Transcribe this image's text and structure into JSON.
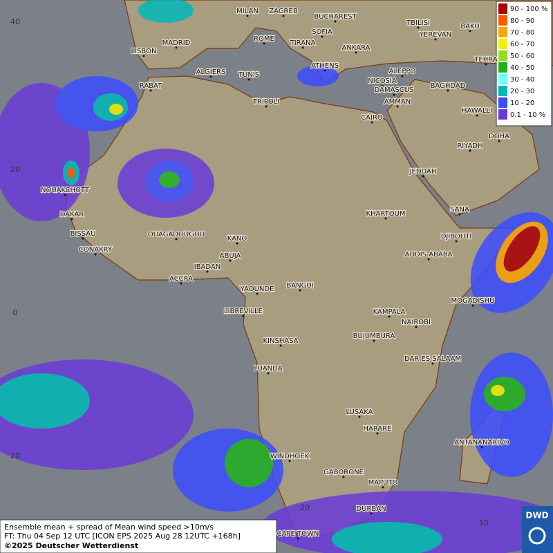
{
  "map": {
    "legend": [
      {
        "label": "90 - 100 %",
        "color": "#b00000"
      },
      {
        "label": "80 - 90",
        "color": "#ff5a00"
      },
      {
        "label": "70 - 80",
        "color": "#ffa500"
      },
      {
        "label": "60 - 70",
        "color": "#f0f000"
      },
      {
        "label": "50 - 60",
        "color": "#90e020"
      },
      {
        "label": "40 - 50",
        "color": "#20b020"
      },
      {
        "label": "30 - 40",
        "color": "#70ffff"
      },
      {
        "label": "20 - 30",
        "color": "#00b8b8"
      },
      {
        "label": "10 - 20",
        "color": "#3c4cff"
      },
      {
        "label": "0.1 - 10 %",
        "color": "#6a3ad8"
      }
    ],
    "cities": [
      "MILAN",
      "ZAGREB",
      "BUCHAREST",
      "TBILISI",
      "BAKU",
      "SOFIA",
      "YEREVAN",
      "ROME",
      "TIRANA",
      "ANKARA",
      "MADRID",
      "LISBON",
      "TEHRA",
      "ALGIERS",
      "TUNIS",
      "ATHENS",
      "ALEPPO",
      "RABAT",
      "NICOSIA",
      "BAGHDAD",
      "DAMASCUS",
      "TRIPOLI",
      "AMMAN",
      "CAIRO",
      "HAWALLI",
      "DOHA",
      "RIYADH",
      "JEDDAH",
      "NOUAKCHOTT",
      "SANA",
      "KHARTOUM",
      "DAKAR",
      "BISSAU",
      "DJIBOUTI",
      "OUAGADOUGOU",
      "KANO",
      "CONAKRY",
      "ADDIS ABABA",
      "ABUJA",
      "IBADAN",
      "ACCRA",
      "YAOUNDE",
      "BANGUI",
      "MOGADISHU",
      "LIBREVILLE",
      "KAMPALA",
      "NAIROBI",
      "BUJUMBURA",
      "KINSHASA",
      "DAR ES SALAAM",
      "LUANDA",
      "LUSAKA",
      "HARARE",
      "ANTANANARIVO",
      "WINDHOEK",
      "GABORONE",
      "MAPUTO",
      "DURBAN",
      "CAPE TOWN"
    ],
    "lat_labels": [
      40,
      20,
      0,
      {
        "value": -20,
        "label": "20"
      }
    ],
    "lon_labels": [
      20,
      50
    ],
    "footer": [
      "Ensemble mean + spread of Mean wind speed >10m/s",
      "FT: Thu 04 Sep 12 UTC [ICON EPS 2025 Aug 28 12UTC +168h]",
      "©2025 Deutscher Wetterdienst"
    ],
    "logo": "DWD"
  }
}
